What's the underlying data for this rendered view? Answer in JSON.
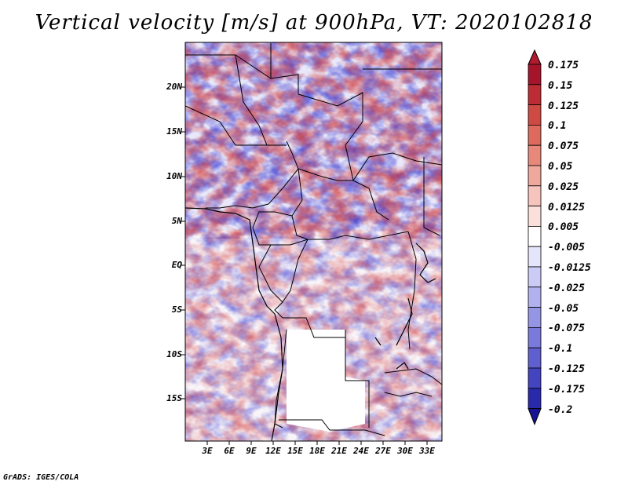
{
  "title": "Vertical velocity [m/s] at 900hPa, VT: 2020102818",
  "credit": "GrADS: IGES/COLA",
  "variable": "Vertical velocity",
  "units": "m/s",
  "level": "900hPa",
  "valid_time": "2020102818",
  "map": {
    "y_ticks": [
      "20N",
      "15N",
      "10N",
      "5N",
      "EQ",
      "5S",
      "10S",
      "15S"
    ],
    "x_ticks": [
      "3E",
      "6E",
      "9E",
      "12E",
      "15E",
      "18E",
      "21E",
      "24E",
      "27E",
      "30E",
      "33E"
    ]
  },
  "colorbar": {
    "labels": [
      "0.175",
      "0.15",
      "0.125",
      "0.1",
      "0.075",
      "0.05",
      "0.025",
      "0.0125",
      "0.005",
      "-0.005",
      "-0.0125",
      "-0.025",
      "-0.05",
      "-0.075",
      "-0.1",
      "-0.125",
      "-0.175",
      "-0.2"
    ],
    "colors": [
      "#a5142a",
      "#bd2b34",
      "#d04a44",
      "#dd6a5d",
      "#e8887b",
      "#f0a79c",
      "#f6c4bc",
      "#fadfda",
      "#ffffff",
      "#e4e4fb",
      "#cbcbf6",
      "#b1b1ef",
      "#9595e6",
      "#7a7adc",
      "#5f5fcf",
      "#4444c0",
      "#2929ac",
      "#141494"
    ]
  }
}
